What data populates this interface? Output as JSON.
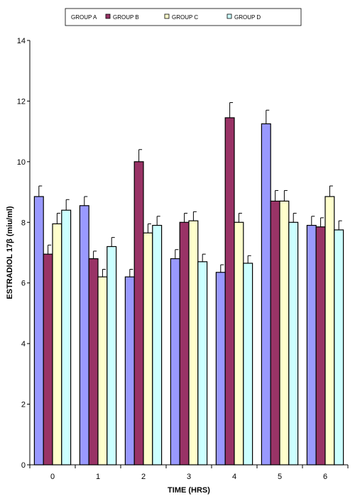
{
  "chart_data": {
    "type": "bar",
    "xlabel": "TIME (HRS)",
    "ylabel": "ESTRADIOL 17β (miu/ml)",
    "categories": [
      "0",
      "1",
      "2",
      "3",
      "4",
      "5",
      "6"
    ],
    "ylim": [
      0,
      14
    ],
    "yticks": [
      0,
      2,
      4,
      6,
      8,
      10,
      12,
      14
    ],
    "grid": false,
    "legend_position": "top",
    "series": [
      {
        "name": "GROUP A",
        "color": "#9999ff",
        "values": [
          8.85,
          8.55,
          6.2,
          6.8,
          6.35,
          11.25,
          7.9
        ],
        "errors": [
          0.35,
          0.3,
          0.25,
          0.3,
          0.25,
          0.45,
          0.3
        ]
      },
      {
        "name": "GROUP B",
        "color": "#993366",
        "values": [
          6.95,
          6.8,
          10.0,
          8.0,
          11.45,
          8.7,
          7.85
        ],
        "errors": [
          0.3,
          0.25,
          0.4,
          0.3,
          0.5,
          0.35,
          0.3
        ]
      },
      {
        "name": "GROUP C",
        "color": "#ffffcc",
        "values": [
          7.95,
          6.2,
          7.65,
          8.05,
          8.0,
          8.7,
          8.85
        ],
        "errors": [
          0.35,
          0.25,
          0.3,
          0.3,
          0.3,
          0.35,
          0.35
        ]
      },
      {
        "name": "GROUP D",
        "color": "#ccffff",
        "values": [
          8.4,
          7.2,
          7.9,
          6.7,
          6.65,
          8.0,
          7.75
        ],
        "errors": [
          0.35,
          0.3,
          0.3,
          0.25,
          0.25,
          0.3,
          0.3
        ]
      }
    ]
  }
}
